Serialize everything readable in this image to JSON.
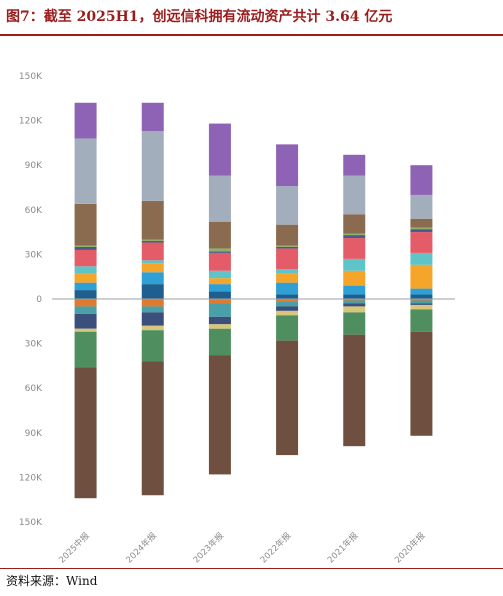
{
  "header": {
    "title": "图7：截至 2025H1，创远信科拥有流动资产共计 3.64 亿元"
  },
  "footer": {
    "source": "资料来源：Wind"
  },
  "chart_data": {
    "type": "bar",
    "stacked": true,
    "diverging": true,
    "categories": [
      "2025中报",
      "2024年报",
      "2023年报",
      "2022年报",
      "2021年报",
      "2020年报"
    ],
    "ylim": [
      -150000,
      150000
    ],
    "y_ticks": [
      {
        "value": 150000,
        "label": "150K"
      },
      {
        "value": 120000,
        "label": "120K"
      },
      {
        "value": 90000,
        "label": "90K"
      },
      {
        "value": 60000,
        "label": "60K"
      },
      {
        "value": 30000,
        "label": "30K"
      },
      {
        "value": 0,
        "label": "0"
      },
      {
        "value": -30000,
        "label": "30K"
      },
      {
        "value": -60000,
        "label": "60K"
      },
      {
        "value": -90000,
        "label": "90K"
      },
      {
        "value": -120000,
        "label": "120K"
      },
      {
        "value": -150000,
        "label": "150K"
      }
    ],
    "grid": false,
    "legend": "none",
    "positive_series": [
      {
        "color": "#1f5f8f",
        "values": [
          6000,
          10000,
          5000,
          3000,
          3000,
          3000
        ]
      },
      {
        "color": "#2ea0d6",
        "values": [
          5000,
          8000,
          5000,
          8000,
          6000,
          4000
        ]
      },
      {
        "color": "#f5a52a",
        "values": [
          6000,
          6000,
          4000,
          6000,
          10000,
          16000
        ]
      },
      {
        "color": "#5ec4c8",
        "values": [
          5000,
          2000,
          5000,
          3000,
          8000,
          8000
        ]
      },
      {
        "color": "#e55c69",
        "values": [
          11000,
          12000,
          12000,
          14000,
          14000,
          14000
        ]
      },
      {
        "color": "#4c5a8a",
        "values": [
          2000,
          1000,
          1000,
          1000,
          2000,
          2000
        ]
      },
      {
        "color": "#8fb06a",
        "values": [
          1000,
          1000,
          2000,
          1000,
          1000,
          1000
        ]
      },
      {
        "color": "#8b6b4f",
        "values": [
          28000,
          26000,
          18000,
          14000,
          13000,
          6000
        ]
      },
      {
        "color": "#a2aebb",
        "values": [
          44000,
          47000,
          31000,
          26000,
          26000,
          16000
        ]
      },
      {
        "color": "#8e62b4",
        "values": [
          24000,
          19000,
          35000,
          28000,
          14000,
          20000
        ]
      }
    ],
    "negative_series": [
      {
        "color": "#e07a2f",
        "values": [
          5000,
          5000,
          3000,
          2000,
          1000,
          1000
        ]
      },
      {
        "color": "#4aa0a8",
        "values": [
          5000,
          4000,
          9000,
          3000,
          2000,
          2000
        ]
      },
      {
        "color": "#3b4f7c",
        "values": [
          10000,
          9000,
          5000,
          3000,
          2000,
          1000
        ]
      },
      {
        "color": "#d8c77a",
        "values": [
          2000,
          3000,
          3000,
          3000,
          4000,
          3000
        ]
      },
      {
        "color": "#4f8f5f",
        "values": [
          24000,
          21000,
          18000,
          17000,
          15000,
          15000
        ]
      },
      {
        "color": "#6f4f3f",
        "values": [
          88000,
          90000,
          80000,
          77000,
          75000,
          70000
        ]
      }
    ]
  }
}
